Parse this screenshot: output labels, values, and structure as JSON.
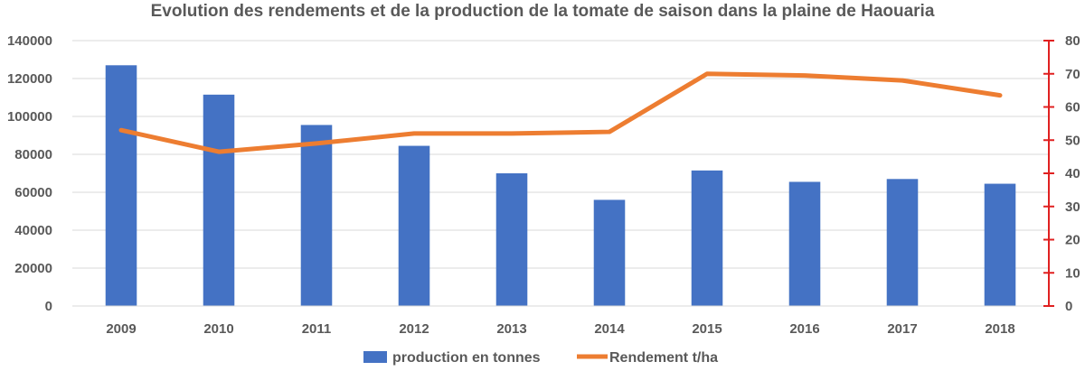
{
  "chart_data": {
    "type": "bar",
    "title": "Evolution des rendements et de la production de la tomate de saison dans la plaine de Haouaria",
    "categories": [
      "2009",
      "2010",
      "2011",
      "2012",
      "2013",
      "2014",
      "2015",
      "2016",
      "2017",
      "2018"
    ],
    "series": [
      {
        "name": "production en tonnes",
        "type": "bar",
        "axis": "left",
        "color": "#4472C4",
        "values": [
          127000,
          111500,
          95500,
          84500,
          70000,
          56000,
          71500,
          65500,
          67000,
          64500
        ]
      },
      {
        "name": "Rendement t/ha",
        "type": "line",
        "axis": "right",
        "color": "#ED7D31",
        "values": [
          53,
          46.5,
          49,
          52,
          52,
          52.5,
          70,
          69.5,
          68,
          63.5
        ]
      }
    ],
    "y_left": {
      "min": 0,
      "max": 140000,
      "ticks": [
        "0",
        "20000",
        "40000",
        "60000",
        "80000",
        "100000",
        "120000",
        "140000"
      ]
    },
    "y_right": {
      "min": 0,
      "max": 80,
      "ticks": [
        "0",
        "10",
        "20",
        "30",
        "40",
        "50",
        "60",
        "70",
        "80"
      ],
      "color": "#E02020"
    },
    "grid": true,
    "legend_position": "bottom"
  }
}
